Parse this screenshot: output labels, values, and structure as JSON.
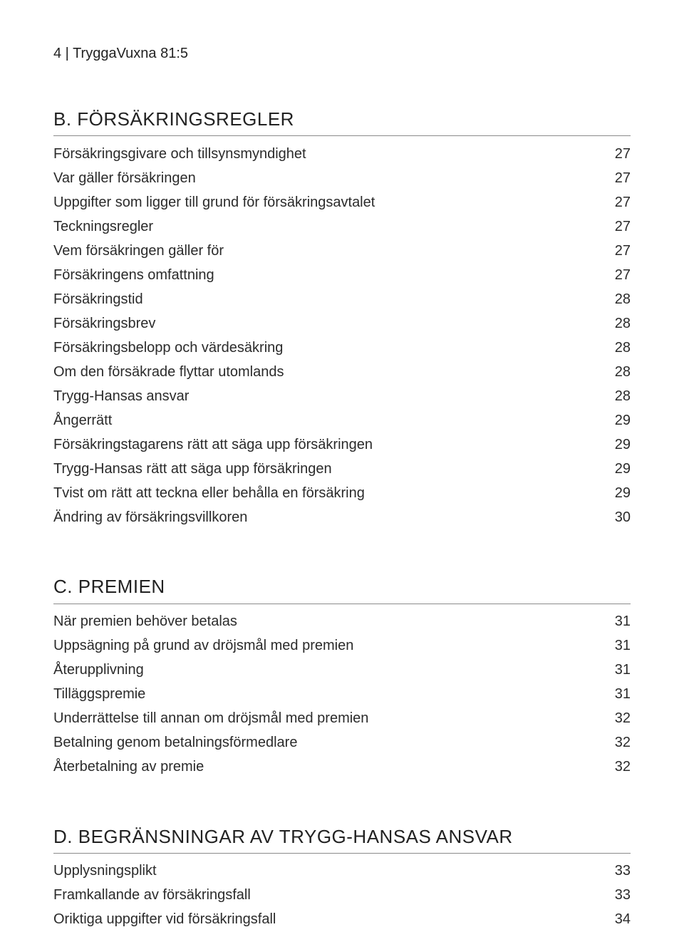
{
  "header": "4 | TryggaVuxna 81:5",
  "sections": [
    {
      "title": "B. FÖRSÄKRINGSREGLER",
      "items": [
        {
          "label": "Försäkringsgivare och tillsynsmyndighet",
          "page": "27"
        },
        {
          "label": "Var gäller försäkringen",
          "page": "27"
        },
        {
          "label": "Uppgifter som ligger till grund för försäkringsavtalet",
          "page": "27"
        },
        {
          "label": "Teckningsregler",
          "page": "27"
        },
        {
          "label": "Vem försäkringen gäller för",
          "page": "27"
        },
        {
          "label": "Försäkringens omfattning",
          "page": "27"
        },
        {
          "label": "Försäkringstid",
          "page": "28"
        },
        {
          "label": "Försäkringsbrev",
          "page": "28"
        },
        {
          "label": "Försäkringsbelopp och värdesäkring",
          "page": "28"
        },
        {
          "label": "Om den försäkrade flyttar utomlands",
          "page": "28"
        },
        {
          "label": "Trygg-Hansas ansvar",
          "page": "28"
        },
        {
          "label": "Ångerrätt",
          "page": "29"
        },
        {
          "label": "Försäkringstagarens rätt att säga upp försäkringen",
          "page": "29"
        },
        {
          "label": "Trygg-Hansas rätt att säga upp försäkringen",
          "page": "29"
        },
        {
          "label": "Tvist om rätt att teckna eller behålla en försäkring",
          "page": "29"
        },
        {
          "label": "Ändring av försäkringsvillkoren",
          "page": "30"
        }
      ]
    },
    {
      "title": "C. PREMIEN",
      "items": [
        {
          "label": "När premien behöver betalas",
          "page": "31"
        },
        {
          "label": "Uppsägning på grund av dröjsmål med premien",
          "page": "31"
        },
        {
          "label": "Återupplivning",
          "page": "31"
        },
        {
          "label": "Tilläggspremie",
          "page": "31"
        },
        {
          "label": "Underrättelse till annan om dröjsmål med premien",
          "page": "32"
        },
        {
          "label": "Betalning genom betalningsförmedlare",
          "page": "32"
        },
        {
          "label": "Återbetalning av premie",
          "page": "32"
        }
      ]
    },
    {
      "title": "D. BEGRÄNSNINGAR AV TRYGG-HANSAS ANSVAR",
      "items": [
        {
          "label": "Upplysningsplikt",
          "page": "33"
        },
        {
          "label": "Framkallande av försäkringsfall",
          "page": "33"
        },
        {
          "label": "Oriktiga uppgifter vid försäkringsfall",
          "page": "34"
        }
      ]
    }
  ]
}
